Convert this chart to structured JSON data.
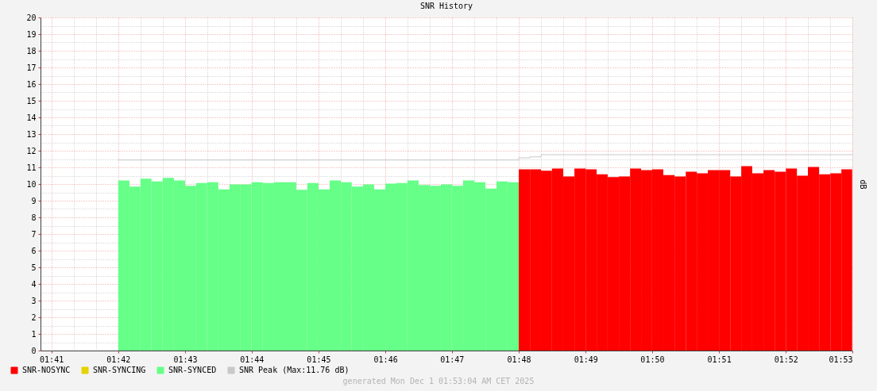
{
  "chart_data": {
    "type": "bar",
    "title": "SNR History",
    "ylabel": "dB",
    "annotations": [
      "generated Mon Dec  1 01:53:04 AM CET 2025"
    ],
    "xlim": [
      1.6806,
      1.8833
    ],
    "ylim": [
      0,
      20
    ],
    "xticks": [
      {
        "value": 1.6833,
        "label": "01:41"
      },
      {
        "value": 1.6889,
        "label": null
      },
      {
        "value": 1.6944,
        "label": null
      },
      {
        "value": 1.7,
        "label": "01:42"
      },
      {
        "value": 1.7056,
        "label": null
      },
      {
        "value": 1.7111,
        "label": null
      },
      {
        "value": 1.7167,
        "label": "01:43"
      },
      {
        "value": 1.7222,
        "label": null
      },
      {
        "value": 1.7278,
        "label": null
      },
      {
        "value": 1.7333,
        "label": "01:44"
      },
      {
        "value": 1.7389,
        "label": null
      },
      {
        "value": 1.7444,
        "label": null
      },
      {
        "value": 1.75,
        "label": "01:45"
      },
      {
        "value": 1.7556,
        "label": null
      },
      {
        "value": 1.7611,
        "label": null
      },
      {
        "value": 1.7667,
        "label": "01:46"
      },
      {
        "value": 1.7722,
        "label": null
      },
      {
        "value": 1.7778,
        "label": null
      },
      {
        "value": 1.7833,
        "label": "01:47"
      },
      {
        "value": 1.7889,
        "label": null
      },
      {
        "value": 1.7944,
        "label": null
      },
      {
        "value": 1.8,
        "label": "01:48"
      },
      {
        "value": 1.8056,
        "label": null
      },
      {
        "value": 1.8111,
        "label": null
      },
      {
        "value": 1.8167,
        "label": "01:49"
      },
      {
        "value": 1.8222,
        "label": null
      },
      {
        "value": 1.8278,
        "label": null
      },
      {
        "value": 1.8333,
        "label": "01:50"
      },
      {
        "value": 1.8389,
        "label": null
      },
      {
        "value": 1.8444,
        "label": null
      },
      {
        "value": 1.85,
        "label": "01:51"
      },
      {
        "value": 1.8556,
        "label": null
      },
      {
        "value": 1.8611,
        "label": null
      },
      {
        "value": 1.8667,
        "label": "01:52"
      },
      {
        "value": 1.8722,
        "label": null
      },
      {
        "value": 1.8778,
        "label": null
      },
      {
        "value": 1.8833,
        "label": "01:53"
      }
    ],
    "yticks": [
      0,
      {
        "value": 0.5,
        "label": null
      },
      1,
      {
        "value": 1.5,
        "label": null
      },
      2,
      {
        "value": 2.5,
        "label": null
      },
      3,
      {
        "value": 3.5,
        "label": null
      },
      4,
      {
        "value": 4.5,
        "label": null
      },
      5,
      {
        "value": 5.5,
        "label": null
      },
      6,
      {
        "value": 6.5,
        "label": null
      },
      7,
      {
        "value": 7.5,
        "label": null
      },
      8,
      {
        "value": 8.5,
        "label": null
      },
      9,
      {
        "value": 9.5,
        "label": null
      },
      10,
      {
        "value": 10.5,
        "label": null
      },
      11,
      {
        "value": 11.5,
        "label": null
      },
      12,
      {
        "value": 12.5,
        "label": null
      },
      13,
      {
        "value": 13.5,
        "label": null
      },
      14,
      {
        "value": 14.5,
        "label": null
      },
      15,
      {
        "value": 15.5,
        "label": null
      },
      16,
      {
        "value": 16.5,
        "label": null
      },
      17,
      {
        "value": 17.5,
        "label": null
      },
      18,
      {
        "value": 18.5,
        "label": null
      },
      19,
      {
        "value": 19.5,
        "label": null
      },
      20
    ],
    "grid": true,
    "legend": "bottom left",
    "series": [
      {
        "name": "SNR-NOSYNC",
        "color": "#ff0000",
        "x": [
          1.8014,
          1.8042,
          1.8069,
          1.8097,
          1.8125,
          1.8153,
          1.8181,
          1.8208,
          1.8236,
          1.8264,
          1.8292,
          1.8319,
          1.8347,
          1.8375,
          1.8403,
          1.8431,
          1.8458,
          1.8486,
          1.8514,
          1.8542,
          1.8569,
          1.8597,
          1.8625,
          1.8653,
          1.8681,
          1.8708,
          1.8736,
          1.8764,
          1.8792,
          1.8819
        ],
        "values": [
          10.88,
          10.88,
          10.8,
          10.93,
          10.45,
          10.93,
          10.88,
          10.58,
          10.42,
          10.45,
          10.93,
          10.83,
          10.88,
          10.54,
          10.45,
          10.74,
          10.64,
          10.83,
          10.83,
          10.45,
          11.07,
          10.64,
          10.83,
          10.74,
          10.93,
          10.5,
          11.02,
          10.58,
          10.64,
          10.88
        ]
      },
      {
        "name": "SNR-SYNCING",
        "color": "#e6d200"
      },
      {
        "name": "SNR-SYNCED",
        "color": "#66ff88",
        "x": [
          1.7014,
          1.7042,
          1.7069,
          1.7097,
          1.7125,
          1.7153,
          1.7181,
          1.7208,
          1.7236,
          1.7264,
          1.7292,
          1.7319,
          1.7347,
          1.7375,
          1.7403,
          1.7431,
          1.7458,
          1.7486,
          1.7514,
          1.7542,
          1.7569,
          1.7597,
          1.7625,
          1.7653,
          1.7681,
          1.7708,
          1.7736,
          1.7764,
          1.7792,
          1.7819,
          1.7847,
          1.7875,
          1.7903,
          1.7931,
          1.7958,
          1.7986
        ],
        "values": [
          10.21,
          9.84,
          10.32,
          10.16,
          10.37,
          10.21,
          9.89,
          10.06,
          10.11,
          9.68,
          9.98,
          9.98,
          10.11,
          10.06,
          10.11,
          10.11,
          9.65,
          10.06,
          9.68,
          10.21,
          10.11,
          9.84,
          9.98,
          9.68,
          10.02,
          10.06,
          10.21,
          9.94,
          9.89,
          9.98,
          9.89,
          10.21,
          10.11,
          9.73,
          10.16,
          10.11
        ]
      },
      {
        "name": "SNR Peak  (Max:11.76 dB)",
        "color": "#c8c8c8",
        "type": "step",
        "x": [
          1.7,
          1.8,
          1.8028,
          1.8056,
          1.8833
        ],
        "values": [
          11.44,
          11.57,
          11.63,
          11.76,
          11.76
        ]
      }
    ]
  }
}
